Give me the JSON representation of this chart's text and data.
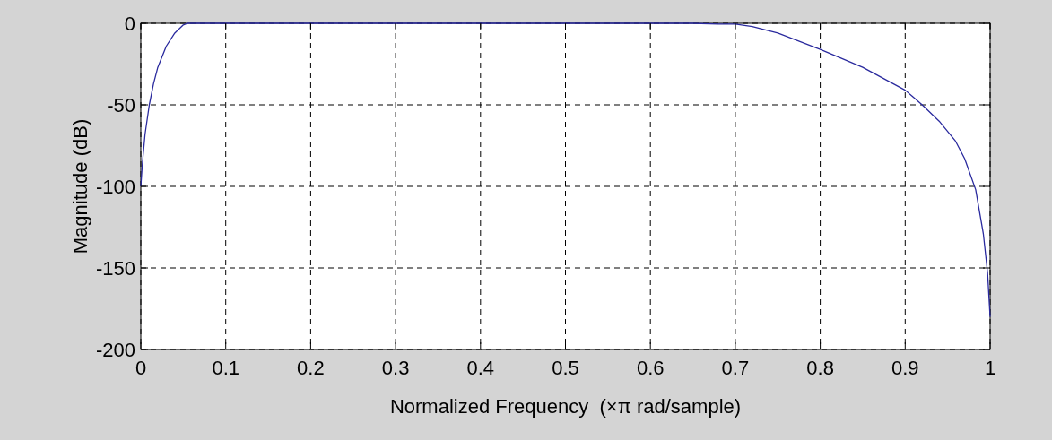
{
  "chart_data": {
    "type": "line",
    "xlabel": "Normalized Frequency  (×π rad/sample)",
    "ylabel": "Magnitude (dB)",
    "series": [
      {
        "color": "#2a2a9e",
        "x": [
          0,
          0.002,
          0.005,
          0.01,
          0.015,
          0.02,
          0.03,
          0.04,
          0.05,
          0.055,
          0.1,
          0.2,
          0.3,
          0.4,
          0.5,
          0.6,
          0.65,
          0.68,
          0.7,
          0.72,
          0.75,
          0.8,
          0.85,
          0.9,
          0.92,
          0.94,
          0.959,
          0.97,
          0.983,
          0.992,
          0.997,
          1
        ],
        "values": [
          -100,
          -85,
          -68,
          -50,
          -37,
          -27,
          -14,
          -6,
          -1,
          0,
          0,
          0,
          0,
          0,
          0,
          0,
          0,
          -0.5,
          -0.5,
          -2,
          -6,
          -16,
          -27,
          -41,
          -50,
          -60,
          -72,
          -83,
          -102,
          -129,
          -153,
          -180
        ]
      }
    ],
    "xlim": [
      0,
      1
    ],
    "ylim": [
      -200,
      0
    ],
    "xticks": [
      0,
      0.1,
      0.2,
      0.3,
      0.4,
      0.5,
      0.6,
      0.7,
      0.8,
      0.9,
      1
    ],
    "yticks": [
      -200,
      -150,
      -100,
      -50,
      0
    ],
    "grid": true,
    "line_style": "solid",
    "marker": "none"
  }
}
